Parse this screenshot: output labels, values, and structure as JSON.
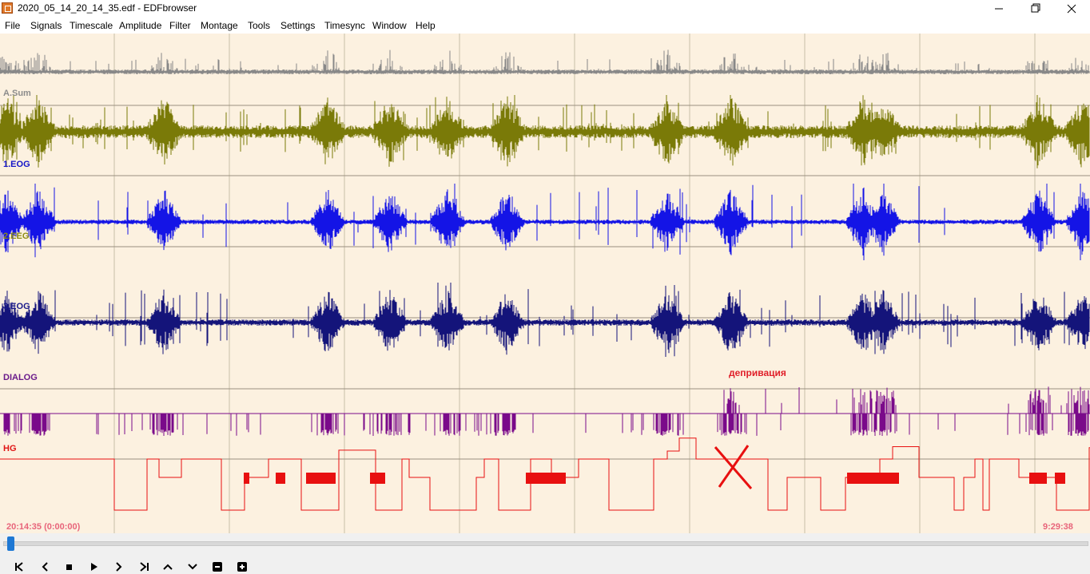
{
  "window": {
    "title": "2020_05_14_20_14_35.edf - EDFbrowser",
    "minimize_icon": "minimize-icon",
    "maximize_icon": "restore-icon",
    "close_icon": "close-icon"
  },
  "menu": [
    "File",
    "Signals",
    "Timescale",
    "Amplitude",
    "Filter",
    "Montage",
    "Tools",
    "Settings",
    "Timesync",
    "Window",
    "Help"
  ],
  "channels": [
    {
      "label": "A.Sum",
      "color": "#8c8c8c"
    },
    {
      "label": "1.EOG",
      "color": "#1414c8"
    },
    {
      "label": "2.EEG",
      "color": "#8c8c14"
    },
    {
      "label": "3.EOG",
      "color": "#1a1a8a"
    },
    {
      "label": "DIALOG",
      "color": "#6a1a8a"
    },
    {
      "label": "HG",
      "color": "#e01414"
    }
  ],
  "trace_colors": {
    "sum": "#888888",
    "olive": "#7a7a08",
    "blue": "#1414e6",
    "navy": "#14147a",
    "dialog": "#7a0a8a",
    "hg": "#e81010"
  },
  "annotation": {
    "text": "депривация",
    "color": "#e0202a"
  },
  "time": {
    "start": "20:14:35 (0:00:00)",
    "end": "9:29:38"
  },
  "colors": {
    "background": "#fcf1e0",
    "gridline": "#c8c0a8",
    "time_label": "#e8647a",
    "scroll_thumb": "#1e78d4"
  },
  "toolbar_icons": [
    "skip-to-start-icon",
    "step-back-icon",
    "stop-icon",
    "play-icon",
    "step-forward-icon",
    "skip-to-end-icon",
    "amplitude-up-icon",
    "amplitude-down-icon",
    "zoom-out-icon",
    "zoom-in-icon"
  ]
}
